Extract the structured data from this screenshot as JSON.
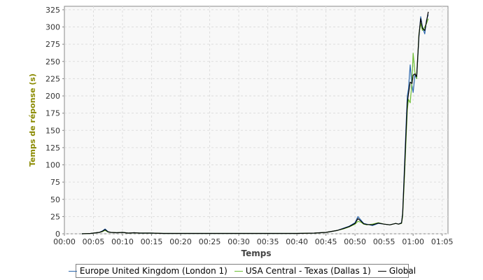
{
  "chart_data": {
    "type": "line",
    "title": "",
    "xlabel": "Temps",
    "ylabel": "Temps de réponse (s)",
    "x_tick_labels": [
      "00:00",
      "00:05",
      "00:10",
      "00:15",
      "00:20",
      "00:25",
      "00:30",
      "00:35",
      "00:40",
      "00:45",
      "00:50",
      "00:55",
      "01:00",
      "01:05"
    ],
    "y_tick_labels": [
      "0",
      "25",
      "50",
      "75",
      "100",
      "125",
      "150",
      "175",
      "200",
      "225",
      "250",
      "275",
      "300",
      "325"
    ],
    "xlim_minutes": [
      0,
      66
    ],
    "ylim": [
      0,
      330
    ],
    "grid": true,
    "legend_position": "bottom",
    "x_unit": "minutes",
    "series": [
      {
        "name": "Europe United Kingdom (London 1)",
        "color": "#2b67ac",
        "x": [
          3,
          4.5,
          5,
          6,
          6.5,
          7,
          7.5,
          8,
          9,
          10,
          11,
          12,
          13,
          15,
          17,
          19,
          21,
          24,
          27,
          30,
          35,
          40,
          43,
          45,
          47,
          48,
          49,
          50,
          50.5,
          51,
          51.5,
          52,
          53,
          54,
          55,
          56,
          57,
          57.5,
          58,
          58.2,
          58.5,
          58.8,
          59,
          59.2,
          59.5,
          59.8,
          60,
          60.3,
          60.6,
          61,
          61.3,
          61.6,
          62,
          62.3,
          62.6
        ],
        "values": [
          0,
          0.5,
          1,
          2,
          4,
          7,
          3,
          2,
          1.5,
          2,
          1,
          1.5,
          1,
          1,
          0.5,
          0.5,
          0.5,
          0.5,
          0.5,
          0.5,
          0.5,
          0.5,
          1,
          2,
          5,
          8,
          11,
          16,
          25,
          20,
          15,
          14,
          12,
          15,
          14,
          13,
          15,
          14,
          16,
          30,
          95,
          160,
          200,
          210,
          245,
          215,
          205,
          230,
          225,
          285,
          315,
          300,
          290,
          310,
          318
        ]
      },
      {
        "name": "USA Central - Texas (Dallas 1)",
        "color": "#6cbe32",
        "x": [
          3,
          4.5,
          5,
          6,
          6.5,
          7,
          7.5,
          8,
          9,
          10,
          11,
          12,
          13,
          15,
          17,
          19,
          21,
          24,
          27,
          30,
          35,
          40,
          43,
          45,
          47,
          48,
          49,
          50,
          50.5,
          51,
          51.5,
          52,
          53,
          54,
          55,
          56,
          57,
          57.5,
          58,
          58.2,
          58.5,
          58.8,
          59,
          59.2,
          59.5,
          59.8,
          60,
          60.3,
          60.6,
          61,
          61.3,
          61.6,
          62,
          62.3,
          62.6
        ],
        "values": [
          0,
          0.5,
          1,
          2,
          3,
          5,
          2.5,
          2,
          1.5,
          2,
          1,
          1.5,
          1,
          1,
          0.5,
          0.5,
          0.5,
          0.5,
          0.5,
          0.5,
          0.5,
          0.5,
          1,
          2,
          5,
          7,
          10,
          14,
          18,
          17,
          14,
          13,
          14,
          16,
          14,
          13,
          15,
          14,
          15,
          25,
          80,
          140,
          180,
          195,
          190,
          220,
          262,
          235,
          225,
          290,
          305,
          295,
          300,
          305,
          312
        ]
      },
      {
        "name": "Global",
        "color": "#000000",
        "x": [
          3,
          4.5,
          5,
          6,
          6.5,
          7,
          7.5,
          8,
          9,
          10,
          11,
          12,
          13,
          15,
          17,
          19,
          21,
          24,
          27,
          30,
          35,
          40,
          43,
          45,
          47,
          48,
          49,
          50,
          50.5,
          51,
          51.5,
          52,
          53,
          54,
          55,
          56,
          57,
          57.5,
          58,
          58.2,
          58.5,
          58.8,
          59,
          59.2,
          59.5,
          59.8,
          60,
          60.3,
          60.6,
          61,
          61.3,
          61.6,
          62,
          62.3,
          62.6
        ],
        "values": [
          0,
          0.5,
          1,
          2,
          3.5,
          6,
          2.8,
          2,
          1.5,
          2,
          1,
          1.5,
          1,
          1,
          0.5,
          0.5,
          0.5,
          0.5,
          0.5,
          0.5,
          0.5,
          0.5,
          1,
          2,
          5,
          7.5,
          10.5,
          15,
          22,
          18.5,
          14.5,
          13.5,
          13,
          15.5,
          14,
          13,
          15,
          14,
          15.5,
          28,
          88,
          150,
          190,
          203,
          220,
          218,
          230,
          232,
          228,
          288,
          312,
          298,
          295,
          308,
          322
        ]
      }
    ]
  },
  "colors": {
    "axis_label": "#8a8a00",
    "plot_background": "#f8f8f8",
    "grid": "#dddddd",
    "axis": "#888888"
  }
}
